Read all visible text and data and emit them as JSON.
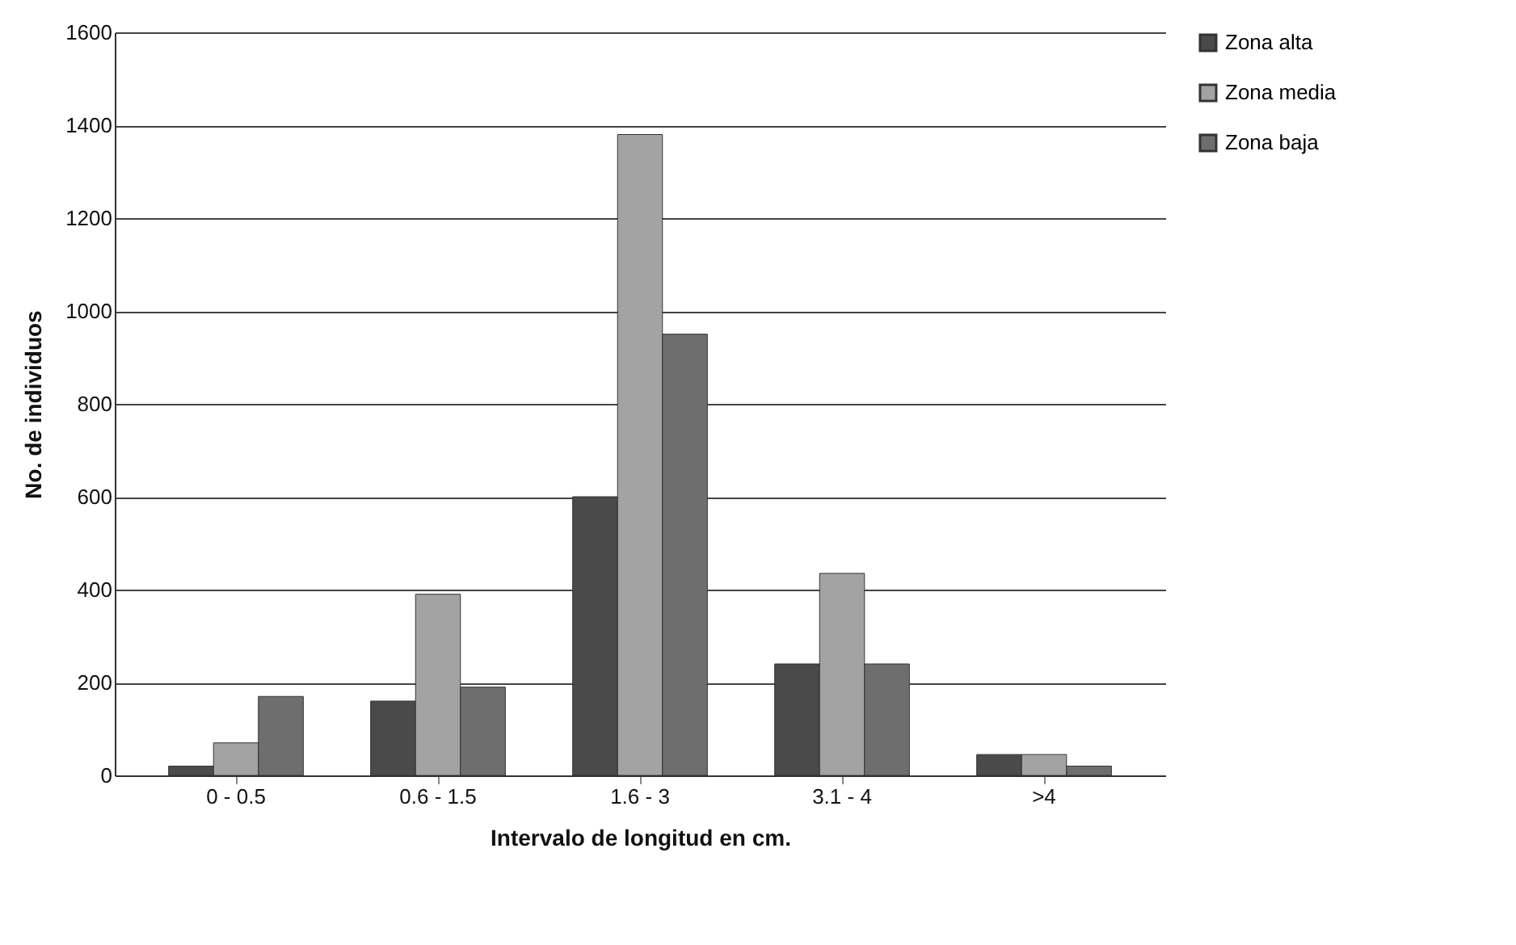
{
  "chart_data": {
    "type": "bar",
    "xlabel": "Intervalo de longitud en cm.",
    "ylabel": "No. de individuos",
    "categories": [
      "0 - 0.5",
      "0.6 - 1.5",
      "1.6 - 3",
      "3.1 - 4",
      ">4"
    ],
    "series": [
      {
        "name": "Zona alta",
        "color": "#4a4a4a",
        "values": [
          20,
          160,
          600,
          240,
          45
        ]
      },
      {
        "name": "Zona media",
        "color": "#a3a3a3",
        "values": [
          70,
          390,
          1380,
          435,
          45
        ]
      },
      {
        "name": "Zona baja",
        "color": "#6e6e6e",
        "values": [
          170,
          190,
          950,
          240,
          20
        ]
      }
    ],
    "ylim": [
      0,
      1600
    ],
    "yticks": [
      0,
      200,
      400,
      600,
      800,
      1000,
      1200,
      1400,
      1600
    ],
    "grid": "y",
    "legend": "right"
  }
}
